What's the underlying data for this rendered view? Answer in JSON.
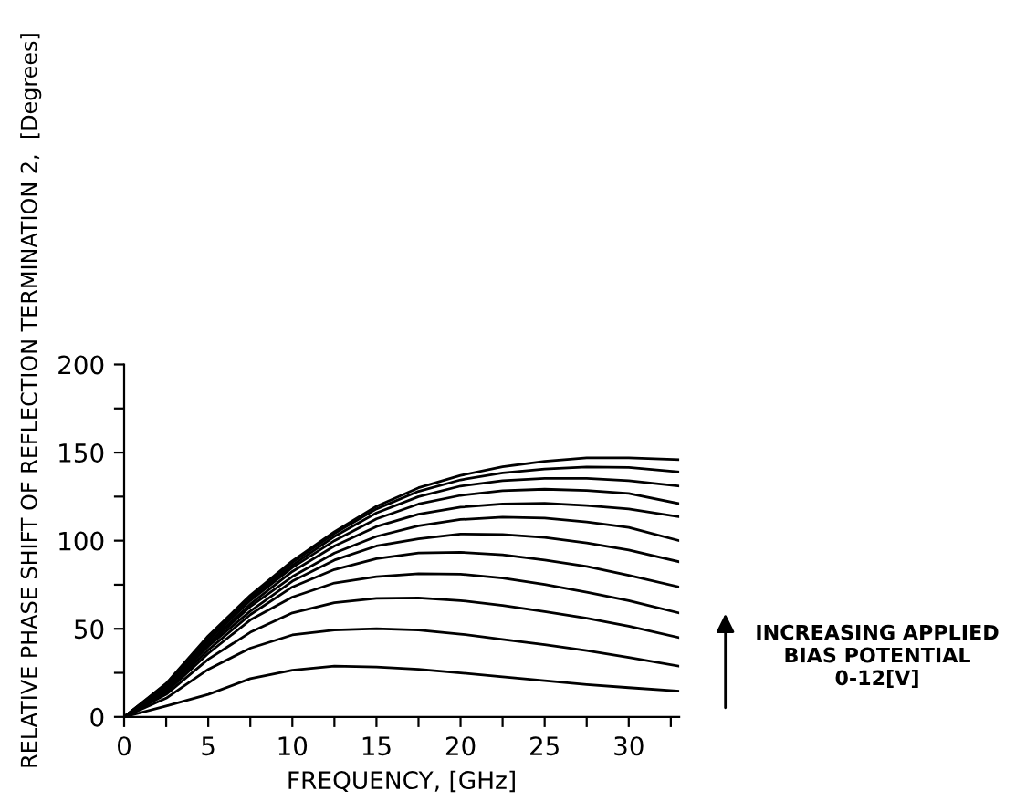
{
  "chart_data": {
    "type": "line",
    "xlabel": "FREQUENCY, [GHz]",
    "ylabel": "RELATIVE PHASE SHIFT OF REFLECTION TERMINATION 2,  [Degrees]",
    "annotations": [
      "INCREASING APPLIED\nBIAS POTENTIAL\n0-12[V]"
    ],
    "x": [
      0,
      2.5,
      5,
      7.5,
      10,
      12.5,
      15,
      17.5,
      20,
      22.5,
      25,
      27.5,
      30,
      33
    ],
    "series": [
      {
        "color": "#000000",
        "values": [
          0,
          6.2,
          12.8,
          21.7,
          26.5,
          28.8,
          28.3,
          27,
          25,
          22.8,
          20.6,
          18.4,
          16.6,
          14.6
        ]
      },
      {
        "color": "#000000",
        "values": [
          0,
          10.6,
          27,
          39,
          46.5,
          49.3,
          50,
          49.3,
          47,
          44,
          41,
          37.6,
          33.8,
          28.8
        ]
      },
      {
        "color": "#000000",
        "values": [
          0,
          12.8,
          32.7,
          48,
          59,
          64.8,
          67.3,
          67.5,
          66,
          63.3,
          59.7,
          56,
          51.5,
          45
        ]
      },
      {
        "color": "#000000",
        "values": [
          0,
          14,
          36,
          55,
          68,
          76,
          79.6,
          81.2,
          81,
          78.8,
          75.2,
          70.8,
          66,
          59
        ]
      },
      {
        "color": "#000000",
        "values": [
          0,
          15,
          38,
          58,
          73.7,
          83.6,
          89.8,
          93,
          93.4,
          92,
          89,
          85.4,
          80.3,
          73.7
        ]
      },
      {
        "color": "#000000",
        "values": [
          0,
          16,
          40,
          60,
          77,
          89,
          97,
          101,
          103.8,
          103.5,
          101.8,
          98.7,
          94.7,
          88
        ]
      },
      {
        "color": "#000000",
        "values": [
          0,
          16.6,
          41,
          62.6,
          79.6,
          93,
          102.4,
          108.4,
          112,
          113.3,
          112.8,
          110.6,
          107.5,
          100
        ]
      },
      {
        "color": "#000000",
        "values": [
          0,
          17,
          42,
          64,
          82.5,
          97,
          108,
          115,
          119,
          120.8,
          121.2,
          120,
          118,
          113.5
        ]
      },
      {
        "color": "#000000",
        "values": [
          0,
          17.7,
          43.4,
          66,
          84.7,
          100,
          112.4,
          120.8,
          125.7,
          128.3,
          129.2,
          128.5,
          126.8,
          121
        ]
      },
      {
        "color": "#000000",
        "values": [
          0,
          18,
          44,
          67,
          86,
          102.4,
          115.7,
          125,
          131,
          134,
          135.4,
          135.4,
          134,
          131
        ]
      },
      {
        "color": "#000000",
        "values": [
          0,
          18.6,
          45,
          68,
          87.6,
          104,
          118,
          128,
          134.5,
          138.5,
          140.7,
          141.8,
          141.6,
          139
        ]
      },
      {
        "color": "#000000",
        "values": [
          0,
          19,
          46,
          69,
          88.5,
          105,
          119.5,
          130,
          137,
          142,
          145,
          147,
          147,
          146
        ]
      }
    ],
    "xlim": [
      0,
      33
    ],
    "xticks": [
      0,
      {
        "value": 2.5,
        "label": null
      },
      5,
      {
        "value": 7.5,
        "label": null
      },
      10,
      {
        "value": 12.5,
        "label": null
      },
      15,
      {
        "value": 17.5,
        "label": null
      },
      20,
      {
        "value": 22.5,
        "label": null
      },
      25,
      {
        "value": 27.5,
        "label": null
      },
      30,
      {
        "value": 32.5,
        "label": null
      }
    ],
    "ylim": [
      0,
      200
    ],
    "yticks": [
      0,
      {
        "value": 25,
        "label": null
      },
      50,
      {
        "value": 75,
        "label": null
      },
      100,
      {
        "value": 125,
        "label": null
      },
      150,
      {
        "value": 175,
        "label": null
      },
      200
    ],
    "grid": false,
    "legend": false,
    "marker": "none",
    "line_style": "solid"
  }
}
